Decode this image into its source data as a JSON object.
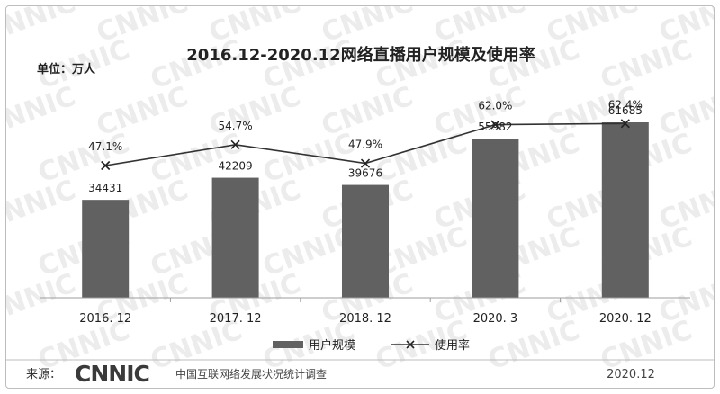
{
  "chart_data": {
    "type": "bar",
    "title": "2016.12-2020.12网络直播用户规模及使用率",
    "unit_label": "单位：万人",
    "categories": [
      "2016. 12",
      "2017. 12",
      "2018. 12",
      "2020. 3",
      "2020. 12"
    ],
    "series": [
      {
        "name": "用户规模",
        "kind": "bar",
        "values": [
          34431,
          42209,
          39676,
          55982,
          61685
        ],
        "labels": [
          "34431",
          "42209",
          "39676",
          "55982",
          "61685"
        ],
        "color": "#616161"
      },
      {
        "name": "使用率",
        "kind": "line",
        "values": [
          47.1,
          54.7,
          47.9,
          62.0,
          62.4
        ],
        "labels": [
          "47.1%",
          "54.7%",
          "47.9%",
          "62.0%",
          "62.4%"
        ],
        "color": "#333333"
      }
    ],
    "legend_position": "bottom",
    "grid": false
  },
  "footer": {
    "source_label": "来源：",
    "logo_text": "CNNIC",
    "org_name": "中国互联网络发展状况统计调查",
    "date": "2020.12"
  },
  "watermark": "CNNIC"
}
